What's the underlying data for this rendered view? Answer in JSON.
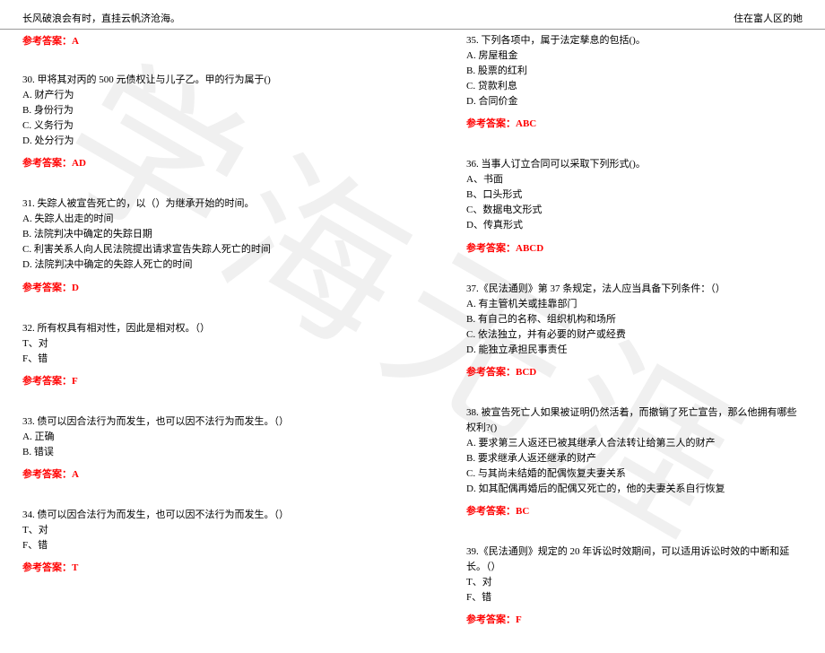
{
  "header": {
    "left": "长风破浪会有时，直挂云帆济沧海。",
    "right": "住在富人区的她"
  },
  "watermark": "学海无涯",
  "colors": {
    "answer": "#ff0000",
    "text": "#000000",
    "divider": "#999999",
    "watermark": "rgba(0,0,0,0.06)"
  },
  "leftTopAnswer": "参考答案：A",
  "leftQuestions": [
    {
      "stem": "30. 甲将其对丙的 500 元债权让与儿子乙。甲的行为属于()",
      "opts": [
        "A. 财产行为",
        "B. 身份行为",
        "C. 义务行为",
        "D. 处分行为"
      ],
      "answer": "参考答案：AD"
    },
    {
      "stem": "31. 失踪人被宣告死亡的，以（）为继承开始的时间。",
      "opts": [
        "A. 失踪人出走的时间",
        "B. 法院判决中确定的失踪日期",
        "C. 利害关系人向人民法院提出请求宣告失踪人死亡的时间",
        "D. 法院判决中确定的失踪人死亡的时间"
      ],
      "answer": "参考答案：D"
    },
    {
      "stem": "32. 所有权具有相对性，因此是相对权。（）",
      "opts": [
        "T、对",
        "F、错"
      ],
      "answer": "参考答案：F"
    },
    {
      "stem": "33. 债可以因合法行为而发生，也可以因不法行为而发生。（）",
      "opts": [
        "A. 正确",
        "B. 错误"
      ],
      "answer": "参考答案：A"
    },
    {
      "stem": "34. 债可以因合法行为而发生，也可以因不法行为而发生。（）",
      "opts": [
        "T、对",
        "F、错"
      ],
      "answer": "参考答案：T"
    }
  ],
  "rightQuestions": [
    {
      "stem": "35. 下列各项中，属于法定孳息的包括()。",
      "opts": [
        "A. 房屋租金",
        "B. 股票的红利",
        "C. 贷款利息",
        "D. 合同价金"
      ],
      "answer": "参考答案：ABC"
    },
    {
      "stem": "36. 当事人订立合同可以采取下列形式()。",
      "opts": [
        "A、书面",
        "B、口头形式",
        "C、数据电文形式",
        "D、传真形式"
      ],
      "answer": "参考答案：ABCD"
    },
    {
      "stem": "37.《民法通则》第 37 条规定，法人应当具备下列条件：（）",
      "opts": [
        "A. 有主管机关或挂靠部门",
        "B. 有自己的名称、组织机构和场所",
        "C. 依法独立，并有必要的财产或经费",
        "D. 能独立承担民事责任"
      ],
      "answer": "参考答案：BCD"
    },
    {
      "stem": "38. 被宣告死亡人如果被证明仍然活着，而撤销了死亡宣告，那么他拥有哪些权利?()",
      "opts": [
        "A. 要求第三人返还已被其继承人合法转让给第三人的财产",
        "B. 要求继承人返还继承的财产",
        "C. 与其尚未结婚的配偶恢复夫妻关系",
        "D. 如其配偶再婚后的配偶又死亡的，他的夫妻关系自行恢复"
      ],
      "answer": "参考答案：BC"
    },
    {
      "stem": "39.《民法通则》规定的 20 年诉讼时效期间，可以适用诉讼时效的中断和延长。（）",
      "opts": [
        "T、对",
        "F、错"
      ],
      "answer": "参考答案：F"
    }
  ]
}
